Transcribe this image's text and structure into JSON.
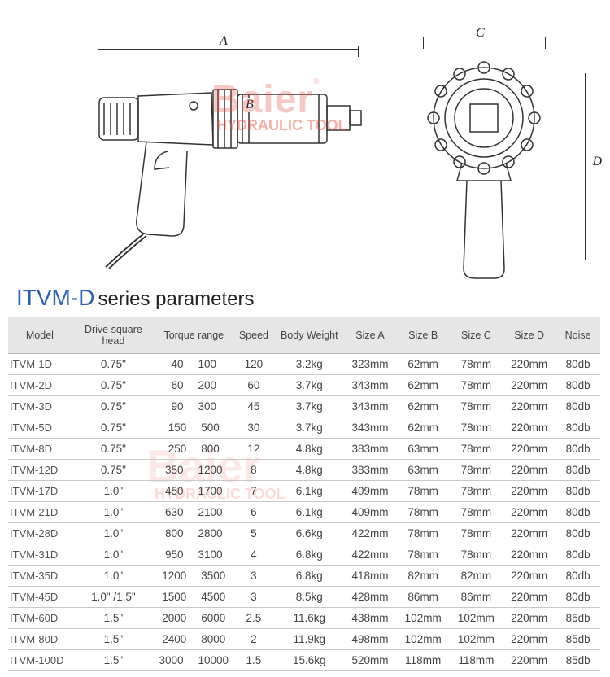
{
  "diagram": {
    "labels": {
      "A": "A",
      "B": "B",
      "C": "C",
      "D": "D"
    },
    "watermark_main": "Baier",
    "watermark_sub": "HYDRAULIC TOOL"
  },
  "title": {
    "model_prefix": "ITVM-D",
    "suffix": "series parameters"
  },
  "table": {
    "columns": [
      "Model",
      "Drive square head",
      "Torque range",
      "Speed",
      "Body Weight",
      "Size A",
      "Size B",
      "Size C",
      "Size D",
      "Noise"
    ],
    "rows": [
      {
        "model": "ITVM-1D",
        "drive": "0.75\"",
        "tmin": "40",
        "tmax": "100",
        "speed": "120",
        "weight": "3.2kg",
        "a": "323mm",
        "b": "62mm",
        "c": "78mm",
        "d": "220mm",
        "noise": "80db"
      },
      {
        "model": "ITVM-2D",
        "drive": "0.75\"",
        "tmin": "60",
        "tmax": "200",
        "speed": "60",
        "weight": "3.7kg",
        "a": "343mm",
        "b": "62mm",
        "c": "78mm",
        "d": "220mm",
        "noise": "80db"
      },
      {
        "model": "ITVM-3D",
        "drive": "0.75\"",
        "tmin": "90",
        "tmax": "300",
        "speed": "45",
        "weight": "3.7kg",
        "a": "343mm",
        "b": "62mm",
        "c": "78mm",
        "d": "220mm",
        "noise": "80db"
      },
      {
        "model": "ITVM-5D",
        "drive": "0.75\"",
        "tmin": "150",
        "tmax": "500",
        "speed": "30",
        "weight": "3.7kg",
        "a": "343mm",
        "b": "62mm",
        "c": "78mm",
        "d": "220mm",
        "noise": "80db"
      },
      {
        "model": "ITVM-8D",
        "drive": "0.75\"",
        "tmin": "250",
        "tmax": "800",
        "speed": "12",
        "weight": "4.8kg",
        "a": "383mm",
        "b": "63mm",
        "c": "78mm",
        "d": "220mm",
        "noise": "80db"
      },
      {
        "model": "ITVM-12D",
        "drive": "0.75\"",
        "tmin": "350",
        "tmax": "1200",
        "speed": "8",
        "weight": "4.8kg",
        "a": "383mm",
        "b": "63mm",
        "c": "78mm",
        "d": "220mm",
        "noise": "80db"
      },
      {
        "model": "ITVM-17D",
        "drive": "1.0\"",
        "tmin": "450",
        "tmax": "1700",
        "speed": "7",
        "weight": "6.1kg",
        "a": "409mm",
        "b": "78mm",
        "c": "78mm",
        "d": "220mm",
        "noise": "80db"
      },
      {
        "model": "ITVM-21D",
        "drive": "1.0\"",
        "tmin": "630",
        "tmax": "2100",
        "speed": "6",
        "weight": "6.1kg",
        "a": "409mm",
        "b": "78mm",
        "c": "78mm",
        "d": "220mm",
        "noise": "80db"
      },
      {
        "model": "ITVM-28D",
        "drive": "1.0\"",
        "tmin": "800",
        "tmax": "2800",
        "speed": "5",
        "weight": "6.6kg",
        "a": "422mm",
        "b": "78mm",
        "c": "78mm",
        "d": "220mm",
        "noise": "80db"
      },
      {
        "model": "ITVM-31D",
        "drive": "1.0\"",
        "tmin": "950",
        "tmax": "3100",
        "speed": "4",
        "weight": "6.8kg",
        "a": "422mm",
        "b": "78mm",
        "c": "78mm",
        "d": "220mm",
        "noise": "80db"
      },
      {
        "model": "ITVM-35D",
        "drive": "1.0\"",
        "tmin": "1200",
        "tmax": "3500",
        "speed": "3",
        "weight": "6.8kg",
        "a": "418mm",
        "b": "82mm",
        "c": "82mm",
        "d": "220mm",
        "noise": "80db"
      },
      {
        "model": "ITVM-45D",
        "drive": "1.0\" /1.5\"",
        "tmin": "1500",
        "tmax": "4500",
        "speed": "3",
        "weight": "8.5kg",
        "a": "428mm",
        "b": "86mm",
        "c": "86mm",
        "d": "220mm",
        "noise": "80db"
      },
      {
        "model": "ITVM-60D",
        "drive": "1.5\"",
        "tmin": "2000",
        "tmax": "6000",
        "speed": "2.5",
        "weight": "11.6kg",
        "a": "438mm",
        "b": "102mm",
        "c": "102mm",
        "d": "220mm",
        "noise": "85db"
      },
      {
        "model": "ITVM-80D",
        "drive": "1.5\"",
        "tmin": "2400",
        "tmax": "8000",
        "speed": "2",
        "weight": "11.9kg",
        "a": "498mm",
        "b": "102mm",
        "c": "102mm",
        "d": "220mm",
        "noise": "85db"
      },
      {
        "model": "ITVM-100D",
        "drive": "1.5\"",
        "tmin": "3000",
        "tmax": "10000",
        "speed": "1.5",
        "weight": "15.6kg",
        "a": "520mm",
        "b": "118mm",
        "c": "118mm",
        "d": "220mm",
        "noise": "85db"
      }
    ]
  },
  "colors": {
    "title_blue": "#2b5fb8",
    "watermark_red": "rgba(231,76,60,0.3)",
    "header_bg": "#e6e6e6",
    "row_border": "#c8c8c8",
    "text": "#444"
  }
}
